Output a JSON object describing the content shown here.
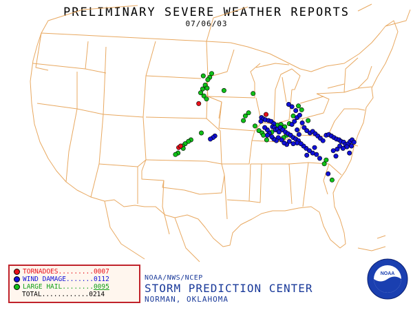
{
  "title": "PRELIMINARY SEVERE WEATHER REPORTS",
  "date": "07/06/03",
  "colors": {
    "tornado": "#e8101a",
    "wind": "#1010d8",
    "hail": "#10c018",
    "boundary": "#e8a860",
    "org_text": "#1a3a9a"
  },
  "legend": {
    "tornadoes": {
      "label": "TORNADOES.........",
      "count": "0007"
    },
    "wind": {
      "label": "WIND DAMAGE.......",
      "count": "0112"
    },
    "hail": {
      "label": "LARGE HAIL........",
      "count": "0095"
    },
    "total": {
      "label": "TOTAL............",
      "count": "0214"
    }
  },
  "footer": {
    "agency": "NOAA/NWS/NCEP",
    "center": "STORM PREDICTION CENTER",
    "location": "NORMAN, OKLAHOMA"
  },
  "logo": {
    "icon": "noaa-logo",
    "text": "NOAA"
  },
  "map_data": {
    "tornado_reports": [
      [
        -99.2,
        45.0
      ],
      [
        -102.3,
        39.3
      ],
      [
        -102.0,
        39.5
      ],
      [
        -88.8,
        43.6
      ]
    ],
    "wind_reports": [
      [
        -96.7,
        40.8
      ],
      [
        -97.0,
        40.6
      ],
      [
        -97.4,
        40.4
      ],
      [
        -89.5,
        43.2
      ],
      [
        -89.2,
        43.0
      ],
      [
        -88.9,
        42.9
      ],
      [
        -88.4,
        42.8
      ],
      [
        -88.0,
        42.7
      ],
      [
        -87.6,
        42.4
      ],
      [
        -87.8,
        42.0
      ],
      [
        -87.5,
        41.9
      ],
      [
        -87.3,
        41.6
      ],
      [
        -87.0,
        41.7
      ],
      [
        -86.6,
        41.9
      ],
      [
        -86.2,
        41.6
      ],
      [
        -85.8,
        41.3
      ],
      [
        -85.4,
        41.1
      ],
      [
        -85.0,
        40.9
      ],
      [
        -84.6,
        40.6
      ],
      [
        -84.2,
        40.4
      ],
      [
        -83.8,
        40.2
      ],
      [
        -84.0,
        39.9
      ],
      [
        -84.6,
        39.8
      ],
      [
        -85.2,
        40.1
      ],
      [
        -85.6,
        39.7
      ],
      [
        -86.0,
        39.9
      ],
      [
        -86.4,
        40.3
      ],
      [
        -86.9,
        40.6
      ],
      [
        -87.2,
        40.2
      ],
      [
        -87.6,
        40.4
      ],
      [
        -87.9,
        40.7
      ],
      [
        -88.3,
        41.2
      ],
      [
        -88.6,
        41.6
      ],
      [
        -89.0,
        41.9
      ],
      [
        -84.8,
        42.3
      ],
      [
        -84.4,
        42.7
      ],
      [
        -84.0,
        43.2
      ],
      [
        -83.6,
        43.5
      ],
      [
        -84.2,
        44.1
      ],
      [
        -84.8,
        44.6
      ],
      [
        -85.3,
        44.9
      ],
      [
        -83.2,
        42.5
      ],
      [
        -82.9,
        41.9
      ],
      [
        -82.5,
        41.5
      ],
      [
        -82.0,
        41.2
      ],
      [
        -81.6,
        41.4
      ],
      [
        -81.2,
        41.1
      ],
      [
        -80.8,
        40.8
      ],
      [
        -80.4,
        40.5
      ],
      [
        -80.0,
        40.2
      ],
      [
        -79.5,
        40.9
      ],
      [
        -79.1,
        41.0
      ],
      [
        -78.7,
        40.8
      ],
      [
        -78.3,
        40.6
      ],
      [
        -77.9,
        40.4
      ],
      [
        -77.5,
        40.3
      ],
      [
        -77.2,
        40.1
      ],
      [
        -76.8,
        40.0
      ],
      [
        -76.5,
        39.7
      ],
      [
        -76.1,
        39.8
      ],
      [
        -75.8,
        40.1
      ],
      [
        -75.5,
        40.3
      ],
      [
        -75.2,
        40.0
      ],
      [
        -75.6,
        39.5
      ],
      [
        -76.3,
        39.4
      ],
      [
        -76.9,
        39.2
      ],
      [
        -77.4,
        39.5
      ],
      [
        -77.8,
        39.1
      ],
      [
        -78.4,
        38.9
      ],
      [
        -80.5,
        37.9
      ],
      [
        -81.0,
        38.4
      ],
      [
        -81.6,
        38.6
      ],
      [
        -82.1,
        38.9
      ],
      [
        -82.6,
        39.2
      ],
      [
        -83.0,
        39.5
      ],
      [
        -83.4,
        39.8
      ],
      [
        -79.2,
        35.9
      ],
      [
        -82.5,
        38.3
      ],
      [
        -81.3,
        39.3
      ],
      [
        -78.0,
        38.2
      ],
      [
        -75.9,
        38.6
      ],
      [
        -84.0,
        41.6
      ],
      [
        -83.7,
        41.0
      ],
      [
        -86.8,
        41.3
      ],
      [
        -88.6,
        40.9
      ],
      [
        -89.6,
        42.7
      ]
    ],
    "hail_reports": [
      [
        -97.2,
        48.9
      ],
      [
        -97.5,
        48.4
      ],
      [
        -97.8,
        48.1
      ],
      [
        -98.5,
        48.6
      ],
      [
        -98.2,
        47.4
      ],
      [
        -97.9,
        47.0
      ],
      [
        -98.6,
        46.9
      ],
      [
        -98.9,
        46.4
      ],
      [
        -98.4,
        46.0
      ],
      [
        -98.0,
        45.6
      ],
      [
        -95.3,
        46.7
      ],
      [
        -90.8,
        46.3
      ],
      [
        -100.4,
        40.3
      ],
      [
        -100.8,
        40.1
      ],
      [
        -101.3,
        39.8
      ],
      [
        -101.7,
        39.5
      ],
      [
        -101.6,
        39.2
      ],
      [
        -102.4,
        38.6
      ],
      [
        -102.8,
        38.4
      ],
      [
        -98.8,
        41.2
      ],
      [
        -92.3,
        42.8
      ],
      [
        -92.0,
        43.4
      ],
      [
        -91.5,
        43.8
      ],
      [
        -90.5,
        42.1
      ],
      [
        -89.9,
        41.5
      ],
      [
        -89.4,
        41.2
      ],
      [
        -88.7,
        40.3
      ],
      [
        -87.9,
        41.3
      ],
      [
        -87.1,
        42.2
      ],
      [
        -86.5,
        42.3
      ],
      [
        -85.9,
        42.0
      ],
      [
        -85.2,
        42.4
      ],
      [
        -84.6,
        43.4
      ],
      [
        -83.3,
        44.2
      ],
      [
        -83.8,
        44.7
      ],
      [
        -82.3,
        42.8
      ],
      [
        -85.6,
        40.9
      ],
      [
        -86.1,
        40.6
      ],
      [
        -79.8,
        37.2
      ],
      [
        -78.6,
        35.1
      ],
      [
        -79.5,
        37.7
      ],
      [
        -89.2,
        40.9
      ]
    ]
  }
}
